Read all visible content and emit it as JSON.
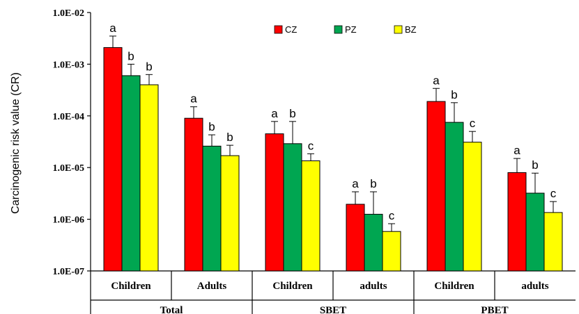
{
  "chart_data": {
    "type": "bar",
    "ylabel": "Carcinogenic risk value (CR)",
    "yscale": "log",
    "ylim": [
      1e-07,
      0.01
    ],
    "yticks": [
      "1.0E-07",
      "1.0E-06",
      "1.0E-05",
      "1.0E-04",
      "1.0E-03",
      "1.0E-02"
    ],
    "categories": [
      "Children",
      "Adults",
      "Children",
      "adults",
      "Children",
      "adults"
    ],
    "groups": [
      {
        "label": "Total",
        "categories": [
          "Children",
          "Adults"
        ]
      },
      {
        "label": "SBET",
        "categories": [
          "Children",
          "adults"
        ]
      },
      {
        "label": "PBET",
        "categories": [
          "Children",
          "adults"
        ]
      }
    ],
    "legend_position": "top-center",
    "grid": false,
    "series": [
      {
        "name": "CZ",
        "color": "#ff0000",
        "values": [
          0.0021,
          9e-05,
          4.5e-05,
          1.95e-06,
          0.00019,
          8e-06
        ],
        "error_upper": [
          0.0035,
          0.00015,
          7.8e-05,
          3.4e-06,
          0.00034,
          1.5e-05
        ],
        "letters": [
          "a",
          "a",
          "a",
          "a",
          "a",
          "a"
        ]
      },
      {
        "name": "PZ",
        "color": "#00a651",
        "values": [
          0.0006,
          2.6e-05,
          2.9e-05,
          1.25e-06,
          7.5e-05,
          3.2e-06
        ],
        "error_upper": [
          0.001,
          4.3e-05,
          7.8e-05,
          3.4e-06,
          0.00018,
          7.8e-06
        ],
        "letters": [
          "b",
          "b",
          "b",
          "b",
          "b",
          "b"
        ]
      },
      {
        "name": "BZ",
        "color": "#ffff00",
        "values": [
          0.0004,
          1.7e-05,
          1.35e-05,
          5.8e-07,
          3.1e-05,
          1.35e-06
        ],
        "error_upper": [
          0.00063,
          2.7e-05,
          1.85e-05,
          8.2e-07,
          5e-05,
          2.2e-06
        ],
        "letters": [
          "b",
          "b",
          "c",
          "c",
          "c",
          "c"
        ]
      }
    ]
  }
}
